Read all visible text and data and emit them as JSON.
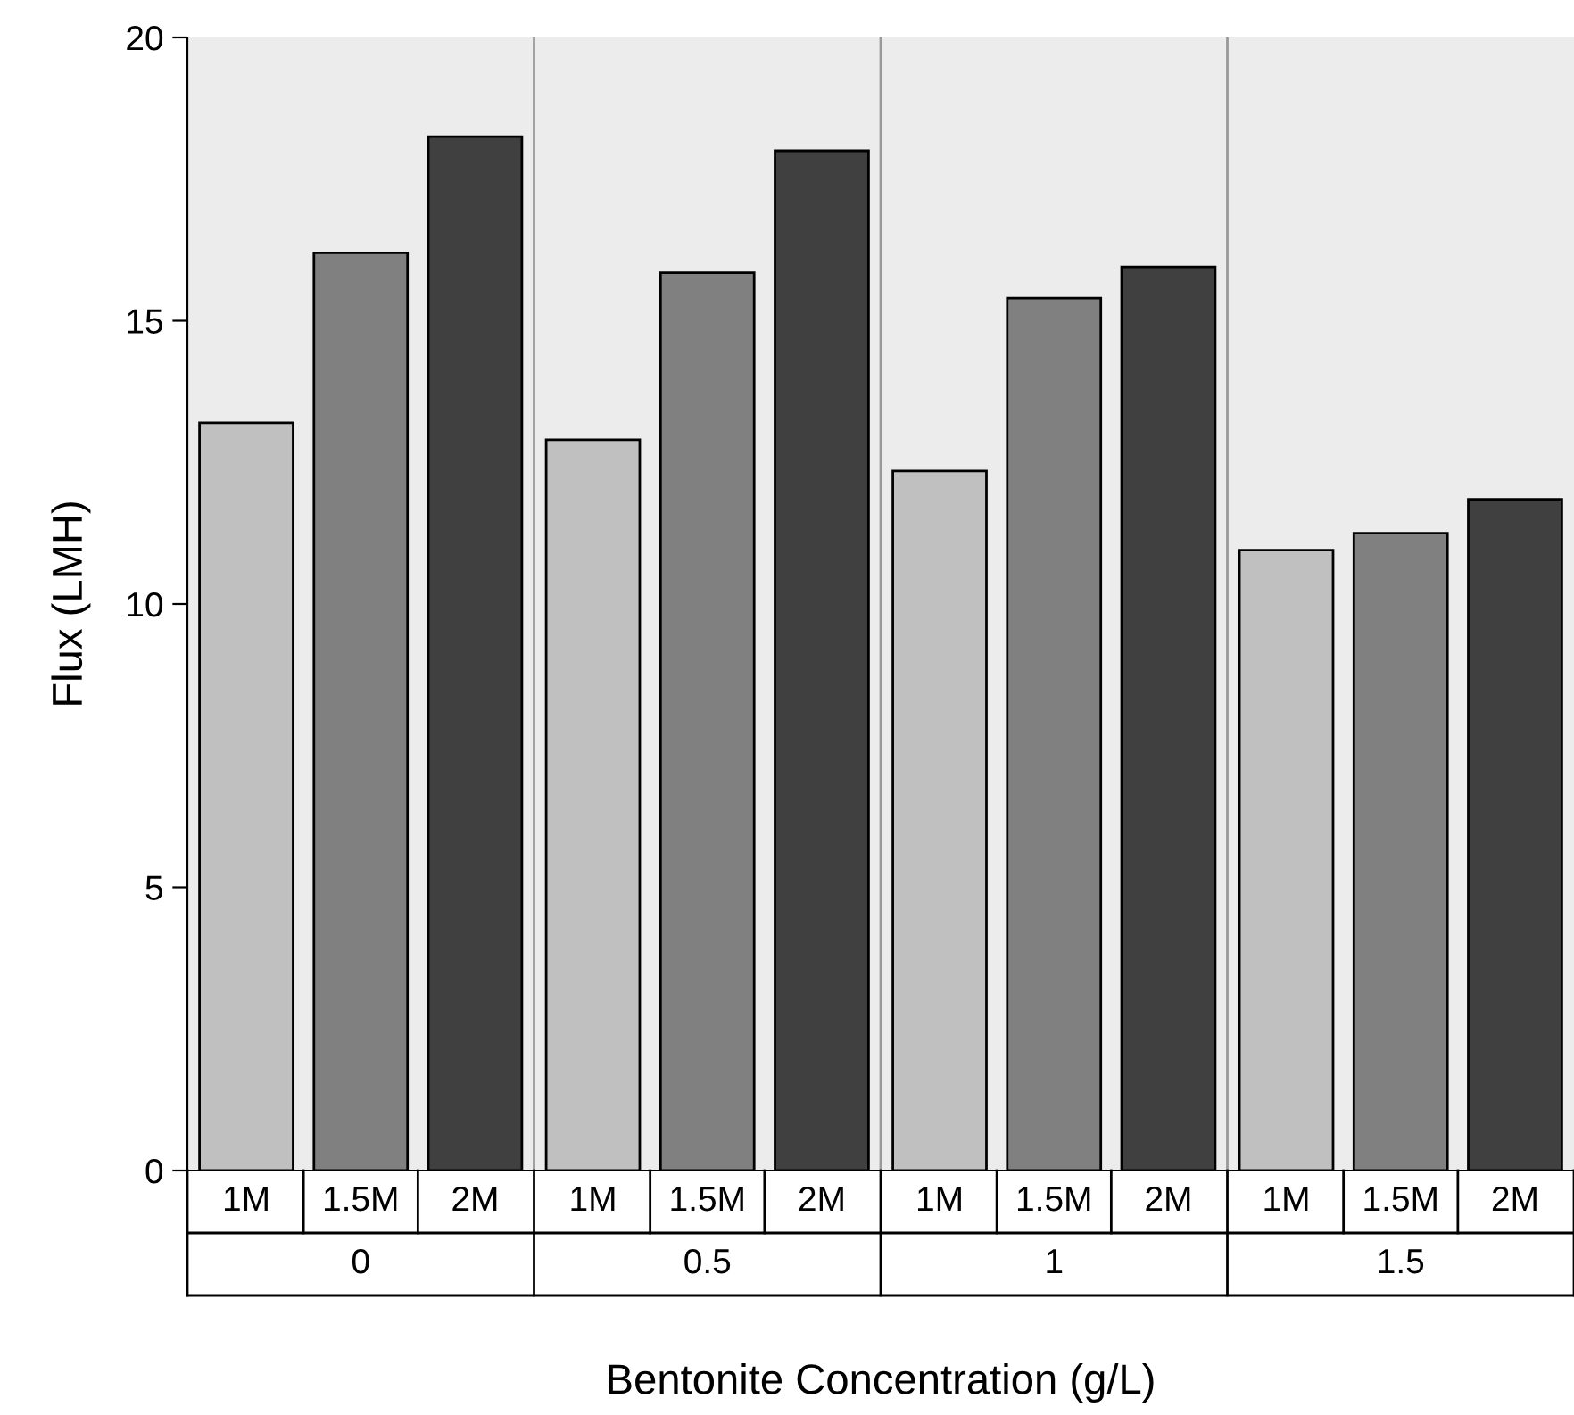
{
  "chart_data": {
    "type": "bar",
    "xlabel": "Bentonite Concentration (g/L)",
    "ylabel": "Flux (LMH)",
    "categories": [
      "0",
      "0.5",
      "1",
      "1.5"
    ],
    "series": [
      {
        "name": "1M",
        "color": "#c0c0c0",
        "values": [
          13.2,
          12.9,
          12.35,
          10.95
        ]
      },
      {
        "name": "1.5M",
        "color": "#808080",
        "values": [
          16.2,
          15.85,
          15.4,
          11.25
        ]
      },
      {
        "name": "2M",
        "color": "#404040",
        "values": [
          18.25,
          18.0,
          15.95,
          11.85
        ]
      }
    ],
    "ylim": [
      0,
      20
    ],
    "yticks": [
      0,
      5,
      10,
      15,
      20
    ],
    "grid": false,
    "legend": "bottom"
  }
}
